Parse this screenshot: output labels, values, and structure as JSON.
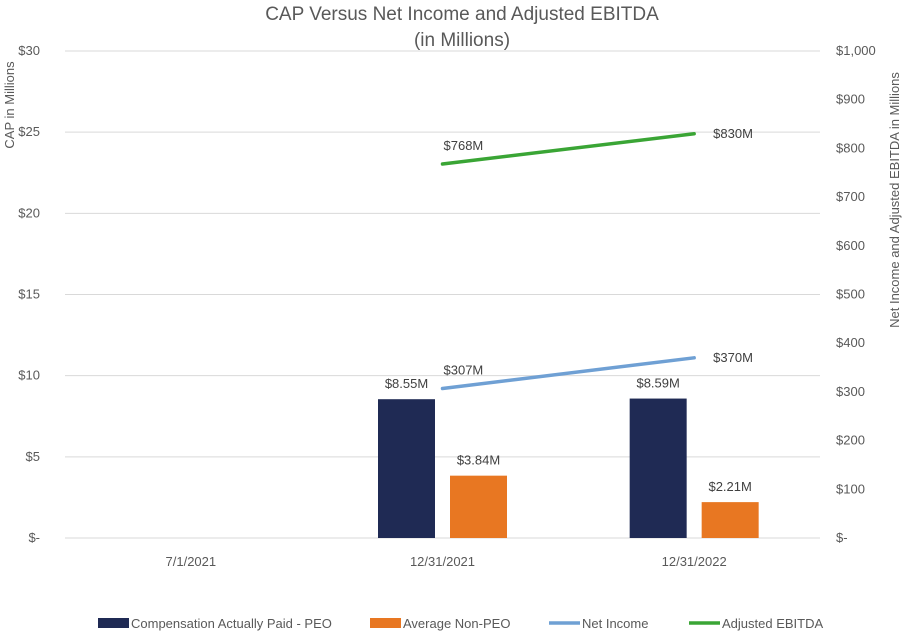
{
  "chart_data": {
    "type": "bar+line",
    "title": "CAP Versus Net Income and Adjusted EBITDA",
    "subtitle": "(in Millions)",
    "categories": [
      "7/1/2021",
      "12/31/2021",
      "12/31/2022"
    ],
    "y_left": {
      "label": "CAP in Millions",
      "range": [
        0,
        30
      ],
      "ticks": [
        0,
        5,
        10,
        15,
        20,
        25,
        30
      ],
      "tick_labels": [
        "$-",
        "$5",
        "$10",
        "$15",
        "$20",
        "$25",
        "$30"
      ]
    },
    "y_right": {
      "label": "Net Income and Adjusted EBITDA in Millions",
      "range": [
        0,
        1000
      ],
      "ticks": [
        0,
        100,
        200,
        300,
        400,
        500,
        600,
        700,
        800,
        900,
        1000
      ],
      "tick_labels": [
        "$-",
        "$100",
        "$200",
        "$300",
        "$400",
        "$500",
        "$600",
        "$700",
        "$800",
        "$900",
        "$1,000"
      ]
    },
    "series": [
      {
        "name": "Compensation Actually Paid - PEO",
        "kind": "bar",
        "axis": "left",
        "color": "#1f2a54",
        "values": [
          null,
          8.55,
          8.59
        ],
        "labels": [
          null,
          "$8.55M",
          "$8.59M"
        ]
      },
      {
        "name": "Average Non-PEO",
        "kind": "bar",
        "axis": "left",
        "color": "#e87722",
        "values": [
          null,
          3.84,
          2.21
        ],
        "labels": [
          null,
          "$3.84M",
          "$2.21M"
        ]
      },
      {
        "name": "Net Income",
        "kind": "line",
        "axis": "right",
        "color": "#6fa0d4",
        "values": [
          null,
          307,
          370
        ],
        "labels": [
          null,
          "$307M",
          "$370M"
        ]
      },
      {
        "name": "Adjusted EBITDA",
        "kind": "line",
        "axis": "right",
        "color": "#3aa535",
        "values": [
          null,
          768,
          830
        ],
        "labels": [
          null,
          "$768M",
          "$830M"
        ]
      }
    ],
    "legend_position": "bottom"
  }
}
